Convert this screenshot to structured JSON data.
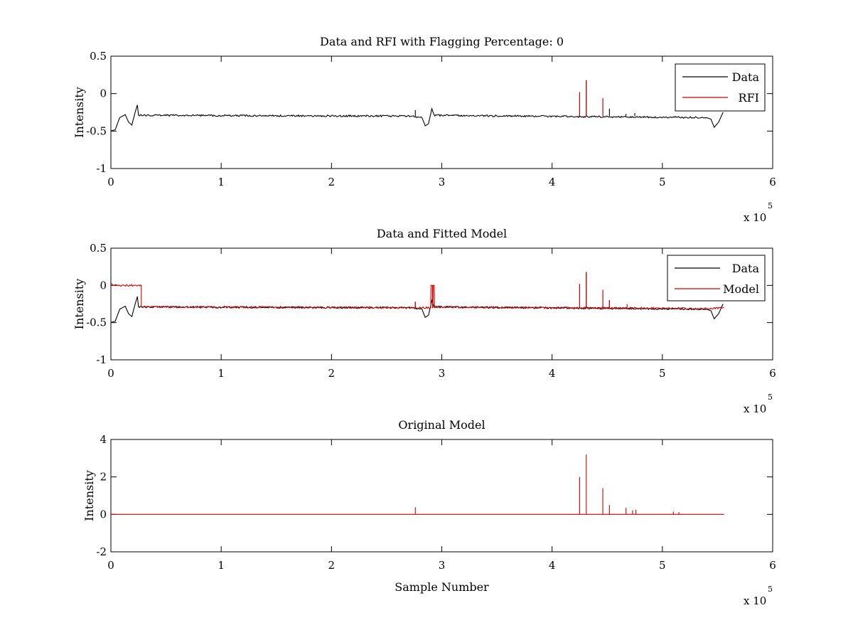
{
  "chart_data": [
    {
      "type": "line",
      "title": "Data and RFI with Flagging Percentage: 0",
      "xlabel": "",
      "ylabel": "Intensity",
      "xlim": [
        0,
        600000
      ],
      "ylim": [
        -1,
        0.5
      ],
      "xticks": [
        0,
        1,
        2,
        3,
        4,
        5,
        6
      ],
      "yticks": [
        "0.5",
        "0",
        "-0.5",
        "-1"
      ],
      "x_multiplier": {
        "text": "x 10",
        "exponent": "5"
      },
      "legend": {
        "position": "top-right",
        "entries": [
          "Data",
          "RFI"
        ]
      },
      "series": [
        {
          "name": "Data",
          "color": "#000000",
          "baseline": -0.3,
          "x_end": 556000,
          "points": [
            [
              0,
              -0.5
            ],
            [
              4000,
              -0.48
            ],
            [
              8000,
              -0.32
            ],
            [
              13000,
              -0.28
            ],
            [
              16000,
              -0.38
            ],
            [
              19000,
              -0.42
            ],
            [
              22000,
              -0.25
            ],
            [
              24000,
              -0.15
            ],
            [
              25000,
              -0.29
            ],
            [
              270000,
              -0.3
            ],
            [
              282000,
              -0.32
            ],
            [
              285000,
              -0.43
            ],
            [
              288000,
              -0.4
            ],
            [
              291000,
              -0.2
            ],
            [
              293000,
              -0.29
            ],
            [
              540000,
              -0.32
            ],
            [
              544000,
              -0.34
            ],
            [
              547000,
              -0.45
            ],
            [
              551000,
              -0.38
            ],
            [
              555000,
              -0.25
            ]
          ],
          "spikes": [
            [
              276000,
              -0.22
            ],
            [
              425000,
              0.02
            ],
            [
              431000,
              0.18
            ],
            [
              446000,
              -0.06
            ],
            [
              452000,
              -0.2
            ],
            [
              467000,
              -0.27
            ],
            [
              475000,
              -0.26
            ]
          ]
        },
        {
          "name": "RFI",
          "color": "#d40000",
          "spikes": [
            [
              425000,
              0.02
            ],
            [
              431000,
              0.18
            ],
            [
              446000,
              -0.06
            ]
          ]
        }
      ]
    },
    {
      "type": "line",
      "title": "Data and Fitted Model",
      "xlabel": "",
      "ylabel": "Intensity",
      "xlim": [
        0,
        600000
      ],
      "ylim": [
        -1,
        0.5
      ],
      "xticks": [
        0,
        1,
        2,
        3,
        4,
        5,
        6
      ],
      "yticks": [
        "0.5",
        "0",
        "-0.5",
        "-1"
      ],
      "x_multiplier": {
        "text": "x 10",
        "exponent": "5"
      },
      "legend": {
        "position": "top-right",
        "entries": [
          "Data",
          "Model"
        ]
      },
      "series": [
        {
          "name": "Data",
          "color": "#000000",
          "baseline": -0.3,
          "x_end": 556000,
          "points": [
            [
              0,
              -0.5
            ],
            [
              4000,
              -0.48
            ],
            [
              8000,
              -0.32
            ],
            [
              13000,
              -0.28
            ],
            [
              16000,
              -0.38
            ],
            [
              19000,
              -0.42
            ],
            [
              22000,
              -0.25
            ],
            [
              24000,
              -0.15
            ],
            [
              25000,
              -0.29
            ],
            [
              270000,
              -0.3
            ],
            [
              282000,
              -0.32
            ],
            [
              285000,
              -0.43
            ],
            [
              288000,
              -0.4
            ],
            [
              291000,
              -0.2
            ],
            [
              293000,
              -0.29
            ],
            [
              540000,
              -0.32
            ],
            [
              544000,
              -0.34
            ],
            [
              547000,
              -0.45
            ],
            [
              551000,
              -0.38
            ],
            [
              555000,
              -0.25
            ]
          ],
          "spikes": [
            [
              276000,
              -0.22
            ],
            [
              425000,
              0.02
            ],
            [
              431000,
              0.18
            ],
            [
              446000,
              -0.06
            ],
            [
              452000,
              -0.2
            ]
          ]
        },
        {
          "name": "Model",
          "color": "#d40000",
          "baseline": -0.3,
          "x_end": 556000,
          "points": [
            [
              0,
              0.03
            ],
            [
              1500,
              0.0
            ],
            [
              27500,
              0.0
            ],
            [
              27600,
              -0.29
            ],
            [
              290000,
              -0.3
            ],
            [
              290200,
              0.0
            ],
            [
              291500,
              0.0
            ],
            [
              291600,
              -0.3
            ],
            [
              292000,
              -0.3
            ],
            [
              292200,
              0.0
            ],
            [
              293200,
              0.0
            ],
            [
              293400,
              -0.29
            ],
            [
              540000,
              -0.31
            ],
            [
              556000,
              -0.3
            ]
          ],
          "spikes": [
            [
              276000,
              -0.22
            ],
            [
              425000,
              0.02
            ],
            [
              431000,
              0.18
            ],
            [
              446000,
              -0.06
            ],
            [
              452000,
              -0.2
            ],
            [
              468000,
              -0.25
            ]
          ]
        }
      ]
    },
    {
      "type": "line",
      "title": "Original Model",
      "xlabel": "Sample Number",
      "ylabel": "Intensity",
      "xlim": [
        0,
        600000
      ],
      "ylim": [
        -2,
        4
      ],
      "xticks": [
        0,
        1,
        2,
        3,
        4,
        5,
        6
      ],
      "yticks": [
        "4",
        "2",
        "0",
        "-2"
      ],
      "x_multiplier": {
        "text": "x 10",
        "exponent": "5"
      },
      "series": [
        {
          "name": "",
          "color": "#d40000",
          "baseline": 0.0,
          "x_end": 556000,
          "spikes": [
            [
              276000,
              0.38
            ],
            [
              425000,
              2.0
            ],
            [
              431000,
              3.2
            ],
            [
              446000,
              1.4
            ],
            [
              452000,
              0.5
            ],
            [
              467000,
              0.35
            ],
            [
              473000,
              0.22
            ],
            [
              476000,
              0.25
            ],
            [
              510000,
              0.15
            ],
            [
              515000,
              0.12
            ]
          ]
        }
      ]
    }
  ]
}
